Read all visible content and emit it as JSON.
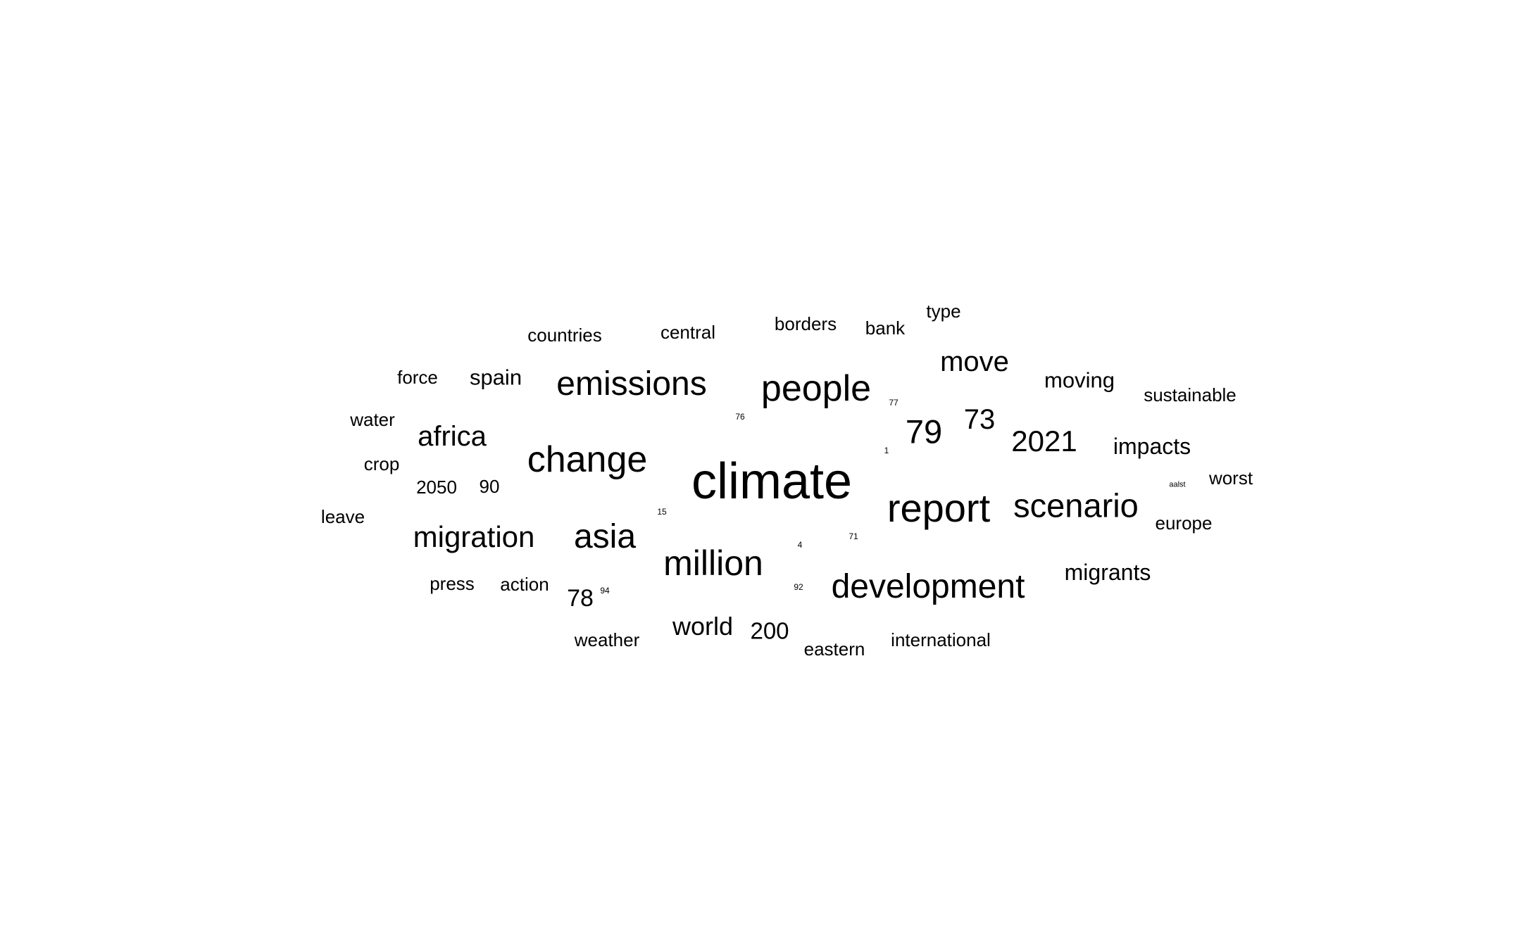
{
  "text_color": "#000000",
  "background_color": "#ffffff",
  "words": [
    {
      "id": "climate",
      "text": "climate",
      "weight": 100
    },
    {
      "id": "report",
      "text": "report",
      "weight": 82
    },
    {
      "id": "people",
      "text": "people",
      "weight": 77
    },
    {
      "id": "change",
      "text": "change",
      "weight": 77
    },
    {
      "id": "million",
      "text": "million",
      "weight": 74
    },
    {
      "id": "development",
      "text": "development",
      "weight": 72
    },
    {
      "id": "emissions",
      "text": "emissions",
      "weight": 72
    },
    {
      "id": "asia",
      "text": "asia",
      "weight": 72
    },
    {
      "id": "scenario",
      "text": "scenario",
      "weight": 70
    },
    {
      "id": "migration",
      "text": "migration",
      "weight": 65
    },
    {
      "id": "n79",
      "text": "79",
      "weight": 70
    },
    {
      "id": "africa",
      "text": "africa",
      "weight": 62
    },
    {
      "id": "n2021",
      "text": "2021",
      "weight": 64
    },
    {
      "id": "move",
      "text": "move",
      "weight": 62
    },
    {
      "id": "n73",
      "text": "73",
      "weight": 62
    },
    {
      "id": "world",
      "text": "world",
      "weight": 57
    },
    {
      "id": "n78",
      "text": "78",
      "weight": 55
    },
    {
      "id": "n200",
      "text": "200",
      "weight": 53
    },
    {
      "id": "impacts",
      "text": "impacts",
      "weight": 52
    },
    {
      "id": "migrants",
      "text": "migrants",
      "weight": 52
    },
    {
      "id": "moving",
      "text": "moving",
      "weight": 50
    },
    {
      "id": "spain",
      "text": "spain",
      "weight": 50
    },
    {
      "id": "countries",
      "text": "countries",
      "weight": 43
    },
    {
      "id": "central",
      "text": "central",
      "weight": 43
    },
    {
      "id": "borders",
      "text": "borders",
      "weight": 43
    },
    {
      "id": "bank",
      "text": "bank",
      "weight": 43
    },
    {
      "id": "type",
      "text": "type",
      "weight": 43
    },
    {
      "id": "force",
      "text": "force",
      "weight": 43
    },
    {
      "id": "sustainable",
      "text": "sustainable",
      "weight": 43
    },
    {
      "id": "water",
      "text": "water",
      "weight": 43
    },
    {
      "id": "crop",
      "text": "crop",
      "weight": 43
    },
    {
      "id": "n2050",
      "text": "2050",
      "weight": 43
    },
    {
      "id": "n90",
      "text": "90",
      "weight": 43
    },
    {
      "id": "worst",
      "text": "worst",
      "weight": 43
    },
    {
      "id": "leave",
      "text": "leave",
      "weight": 43
    },
    {
      "id": "europe",
      "text": "europe",
      "weight": 43
    },
    {
      "id": "press",
      "text": "press",
      "weight": 43
    },
    {
      "id": "action",
      "text": "action",
      "weight": 43
    },
    {
      "id": "weather",
      "text": "weather",
      "weight": 43
    },
    {
      "id": "eastern",
      "text": "eastern",
      "weight": 43
    },
    {
      "id": "international",
      "text": "international",
      "weight": 43
    },
    {
      "id": "n77",
      "text": "77",
      "weight": 12
    },
    {
      "id": "n76",
      "text": "76",
      "weight": 12
    },
    {
      "id": "n1",
      "text": "1",
      "weight": 12
    },
    {
      "id": "n15",
      "text": "15",
      "weight": 12
    },
    {
      "id": "n71",
      "text": "71",
      "weight": 12
    },
    {
      "id": "n4",
      "text": "4",
      "weight": 12
    },
    {
      "id": "n92",
      "text": "92",
      "weight": 12
    },
    {
      "id": "n94",
      "text": "94",
      "weight": 12
    },
    {
      "id": "aalst",
      "text": "aalst",
      "weight": 11
    }
  ]
}
